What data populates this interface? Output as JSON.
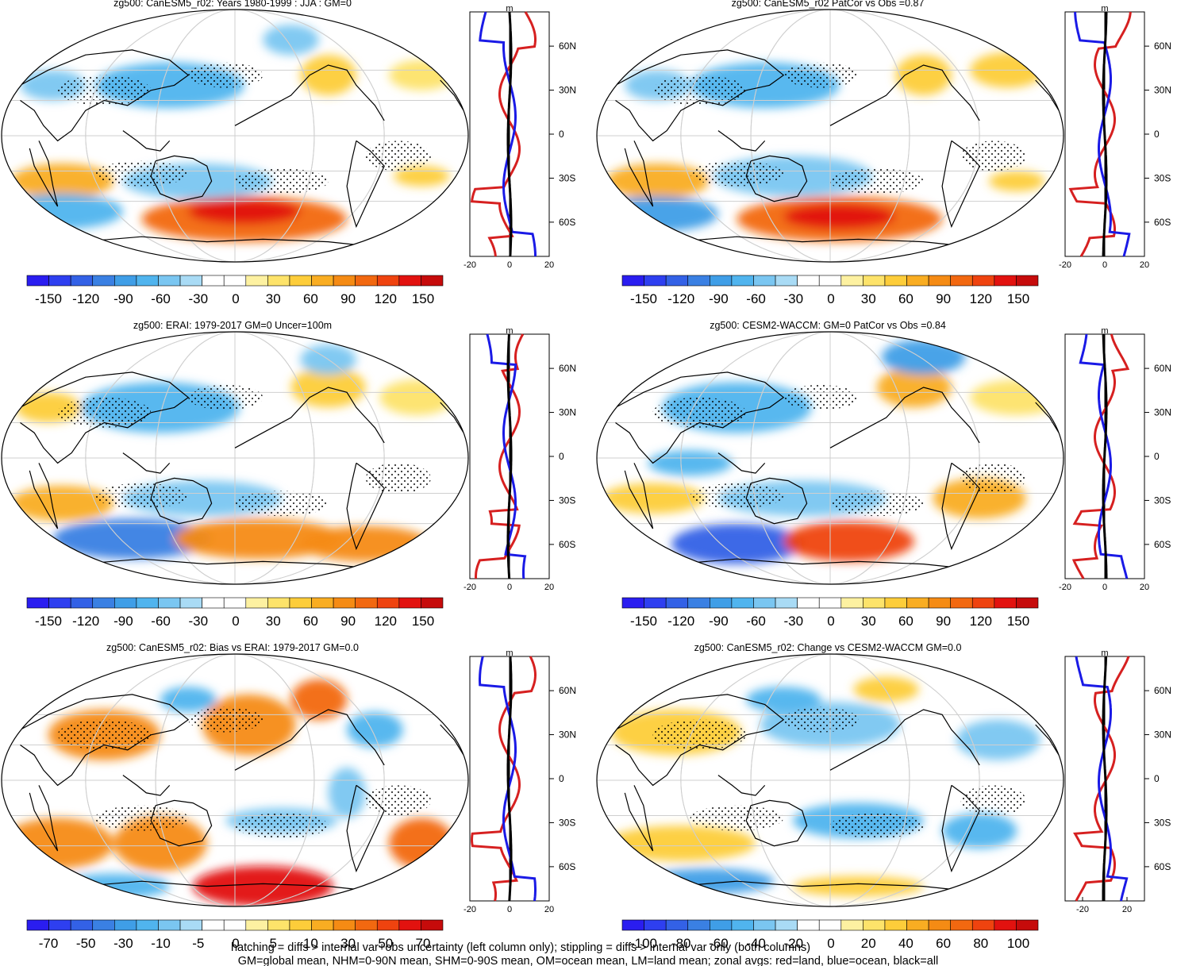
{
  "colors": {
    "scale": [
      "#2a1df0",
      "#2e3ff0",
      "#3361e6",
      "#3a80e3",
      "#3f9ee7",
      "#50b4ee",
      "#7ac6f1",
      "#a9dbf5",
      "#ffffff",
      "#ffffff",
      "#fdf1a1",
      "#fde36a",
      "#fdcd3a",
      "#f9ad22",
      "#f58b14",
      "#f26810",
      "#ef430f",
      "#e2120f",
      "#c60b0b"
    ],
    "land": "#d62020",
    "ocean": "#1a1ae6",
    "all": "#000000"
  },
  "panels": [
    {
      "title": "zg500: CanESM5_r02: Years 1980-1999 : JJA : GM=0",
      "colorbar_labels": [
        "-150",
        "-120",
        "-90",
        "-60",
        "-30",
        "0",
        "30",
        "60",
        "90",
        "120",
        "150"
      ],
      "zonal_ticks": [
        "-20",
        "0",
        "20"
      ],
      "zonal_unit": "m",
      "lat_labels": [
        "60N",
        "30N",
        "0",
        "30S",
        "60S"
      ]
    },
    {
      "title": "zg500: CanESM5_r02 PatCor vs Obs =0.87",
      "colorbar_labels": [
        "-150",
        "-120",
        "-90",
        "-60",
        "-30",
        "0",
        "30",
        "60",
        "90",
        "120",
        "150"
      ],
      "zonal_ticks": [
        "-20",
        "0",
        "20"
      ],
      "zonal_unit": "m",
      "lat_labels": [
        "60N",
        "30N",
        "0",
        "30S",
        "60S"
      ]
    },
    {
      "title": "zg500: ERAI: 1979-2017 GM=0 Uncer=100m",
      "colorbar_labels": [
        "-150",
        "-120",
        "-90",
        "-60",
        "-30",
        "0",
        "30",
        "60",
        "90",
        "120",
        "150"
      ],
      "zonal_ticks": [
        "-20",
        "0",
        "20"
      ],
      "zonal_unit": "m",
      "lat_labels": [
        "60N",
        "30N",
        "0",
        "30S",
        "60S"
      ]
    },
    {
      "title": "zg500: CESM2-WACCM: GM=0 PatCor vs Obs =0.84",
      "colorbar_labels": [
        "-150",
        "-120",
        "-90",
        "-60",
        "-30",
        "0",
        "30",
        "60",
        "90",
        "120",
        "150"
      ],
      "zonal_ticks": [
        "-20",
        "0",
        "20"
      ],
      "zonal_unit": "m",
      "lat_labels": [
        "60N",
        "30N",
        "0",
        "30S",
        "60S"
      ]
    },
    {
      "title": "zg500: CanESM5_r02: Bias vs ERAI: 1979-2017 GM=0.0",
      "colorbar_labels": [
        "-70",
        "-50",
        "-30",
        "-10",
        "-5",
        "0",
        "5",
        "10",
        "30",
        "50",
        "70"
      ],
      "zonal_ticks": [
        "-20",
        "0",
        "20"
      ],
      "zonal_unit": "m",
      "lat_labels": [
        "60N",
        "30N",
        "0",
        "30S",
        "60S"
      ]
    },
    {
      "title": "zg500: CanESM5_r02: Change vs CESM2-WACCM GM=0.0",
      "colorbar_labels": [
        "-100",
        "-80",
        "-60",
        "-40",
        "-20",
        "0",
        "20",
        "40",
        "60",
        "80",
        "100"
      ],
      "zonal_ticks": [
        "-20",
        "20"
      ],
      "zonal_unit": "m",
      "lat_labels": [
        "60N",
        "30N",
        "0",
        "30S",
        "60S"
      ]
    }
  ],
  "footer": {
    "line1": "hatching = diffs > internal var+obs uncertainty (left column only); stippling = diffs > internal var only (both columns)",
    "line2": "GM=global mean, NHM=0-90N mean, SHM=0-90S mean, OM=ocean mean, LM=land mean; zonal avgs: red=land, blue=ocean, black=all"
  }
}
